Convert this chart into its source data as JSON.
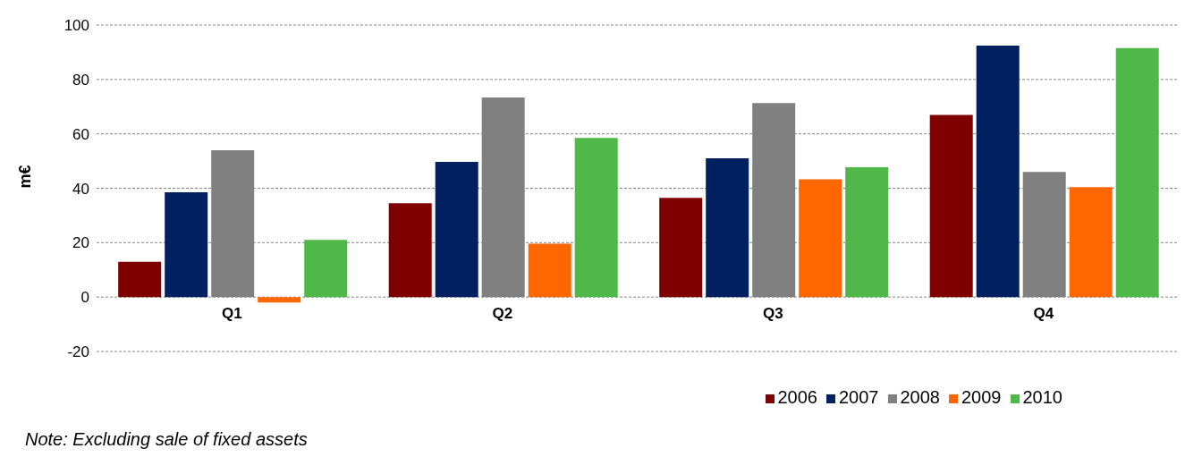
{
  "chart_data": {
    "type": "bar",
    "ylabel": "m€",
    "categories": [
      "Q1",
      "Q2",
      "Q3",
      "Q4"
    ],
    "series": [
      {
        "name": "2006",
        "color": "#7f0000",
        "values": [
          13,
          34.5,
          36.5,
          67
        ]
      },
      {
        "name": "2007",
        "color": "#002060",
        "values": [
          38.5,
          49.7,
          51,
          92.4
        ]
      },
      {
        "name": "2008",
        "color": "#808080",
        "values": [
          54,
          73.4,
          71.3,
          46
        ]
      },
      {
        "name": "2009",
        "color": "#ff6600",
        "values": [
          -2,
          19.6,
          43.3,
          40.4
        ]
      },
      {
        "name": "2010",
        "color": "#50b848",
        "values": [
          21,
          58.5,
          47.7,
          91.5
        ]
      }
    ],
    "ylim": [
      -20,
      100
    ],
    "yticks": [
      -20,
      0,
      20,
      40,
      60,
      80,
      100
    ],
    "grid": "y",
    "legend": "bottom",
    "annotations": [
      "Note: Excluding sale of fixed assets"
    ]
  }
}
